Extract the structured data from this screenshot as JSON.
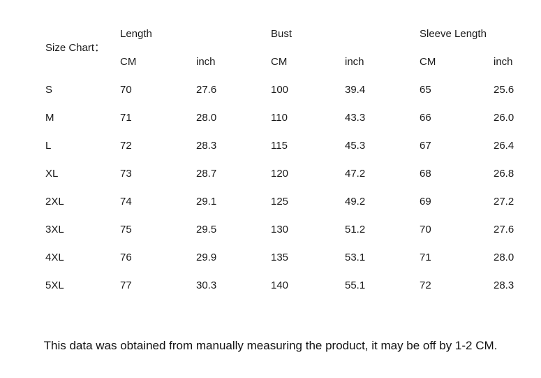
{
  "colors": {
    "background": "#ffffff",
    "text": "#1a1a1a"
  },
  "chart_data": {
    "type": "table",
    "title": "Size Chart：",
    "column_groups": [
      {
        "label": "Length"
      },
      {
        "label": "Bust"
      },
      {
        "label": "Sleeve Length"
      }
    ],
    "units": [
      "CM",
      "inch",
      "CM",
      "inch",
      "CM",
      "inch"
    ],
    "columns": [
      "Size",
      "Length CM",
      "Length inch",
      "Bust CM",
      "Bust inch",
      "Sleeve Length CM",
      "Sleeve Length inch"
    ],
    "rows": [
      {
        "size": "S",
        "values": [
          "70",
          "27.6",
          "100",
          "39.4",
          "65",
          "25.6"
        ]
      },
      {
        "size": "M",
        "values": [
          "71",
          "28.0",
          "110",
          "43.3",
          "66",
          "26.0"
        ]
      },
      {
        "size": "L",
        "values": [
          "72",
          "28.3",
          "115",
          "45.3",
          "67",
          "26.4"
        ]
      },
      {
        "size": "XL",
        "values": [
          "73",
          "28.7",
          "120",
          "47.2",
          "68",
          "26.8"
        ]
      },
      {
        "size": "2XL",
        "values": [
          "74",
          "29.1",
          "125",
          "49.2",
          "69",
          "27.2"
        ]
      },
      {
        "size": "3XL",
        "values": [
          "75",
          "29.5",
          "130",
          "51.2",
          "70",
          "27.6"
        ]
      },
      {
        "size": "4XL",
        "values": [
          "76",
          "29.9",
          "135",
          "53.1",
          "71",
          "28.0"
        ]
      },
      {
        "size": "5XL",
        "values": [
          "77",
          "30.3",
          "140",
          "55.1",
          "72",
          "28.3"
        ]
      }
    ]
  },
  "footer": {
    "note": "This data was obtained from manually measuring the product, it may be off by 1-2 CM."
  }
}
